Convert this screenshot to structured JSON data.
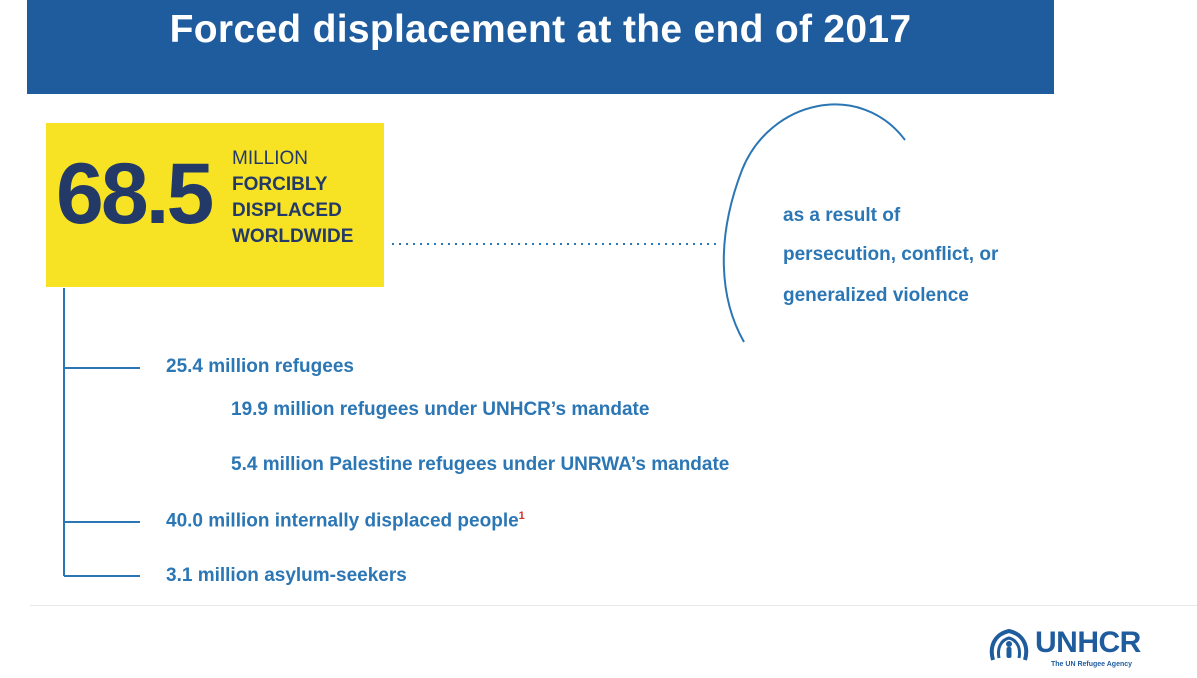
{
  "header": {
    "title": "Forced displacement at the end of 2017"
  },
  "stat": {
    "number": "68.5",
    "line1": "MILLION",
    "line2": "FORCIBLY",
    "line3": "DISPLACED",
    "line4": "WORLDWIDE"
  },
  "cause": {
    "line1": "as a result of",
    "line2": "persecution, conflict, or",
    "line3": "generalized violence"
  },
  "branches": {
    "refugees": "25.4 million refugees",
    "unhcr_mandate": "19.9 million refugees under UNHCR’s mandate",
    "unrwa_mandate": "5.4 million Palestine refugees under UNRWA’s mandate",
    "idp": "40.0 million internally displaced people",
    "idp_footnote": "1",
    "asylum": "3.1 million asylum-seekers"
  },
  "logo": {
    "word": "UNHCR",
    "tagline": "The UN Refugee Agency"
  },
  "colors": {
    "header_bg": "#1f5c9e",
    "stat_box_bg": "#f7e324",
    "stat_text": "#233a69",
    "branch_text": "#2b76b4",
    "footnote": "#d0312d"
  },
  "icons": {
    "logo_emblem": "refugee-family-shelter-icon"
  }
}
